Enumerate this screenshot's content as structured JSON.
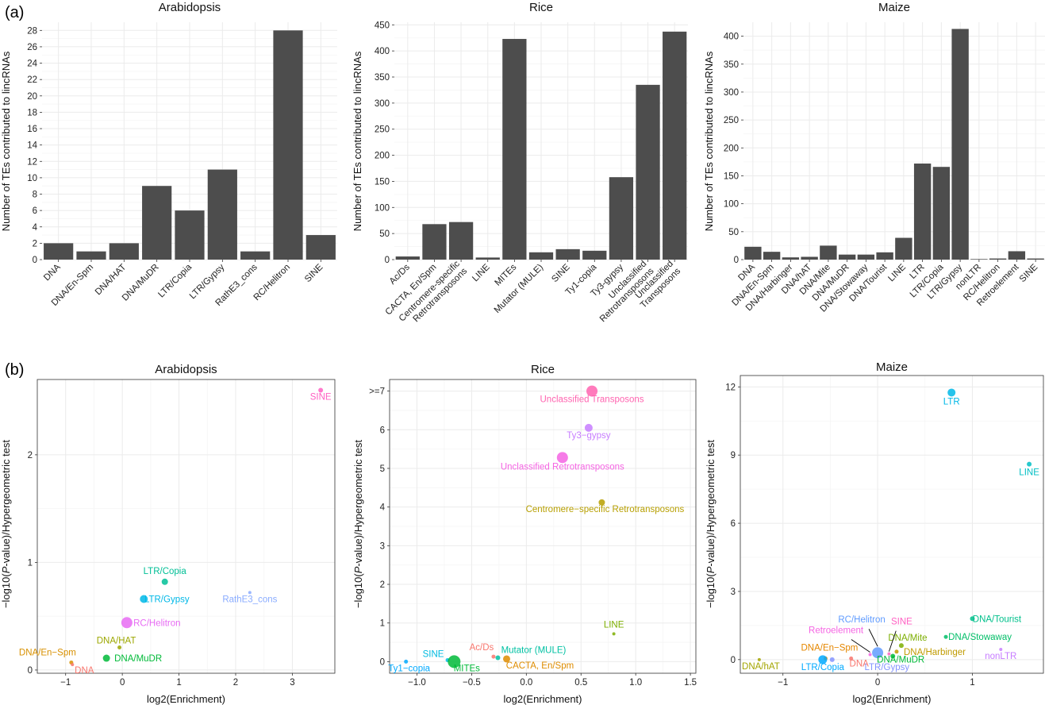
{
  "panels": {
    "a": "(a)",
    "b": "(b)"
  },
  "chart_data": [
    {
      "type": "bar",
      "title": "Arabidopsis",
      "xlabel": "",
      "ylabel": "Number of TEs contributed to lincRNAs",
      "ylim": [
        0,
        29
      ],
      "yticks": [
        0,
        2,
        4,
        6,
        8,
        10,
        12,
        14,
        16,
        18,
        20,
        22,
        24,
        26,
        28
      ],
      "grid": true,
      "categories": [
        "DNA",
        "DNA/En-Spm",
        "DNA/HAT",
        "DNA/MuDR",
        "LTR/Copia",
        "LTR/Gypsy",
        "RathE3_cons",
        "RC/Helitron",
        "SINE"
      ],
      "values": [
        2,
        1,
        2,
        9,
        6,
        11,
        1,
        28,
        3
      ]
    },
    {
      "type": "bar",
      "title": "Rice",
      "xlabel": "",
      "ylabel": "Number of TEs contributed to lincRNAs",
      "ylim": [
        0,
        455
      ],
      "yticks": [
        0,
        50,
        100,
        150,
        200,
        250,
        300,
        350,
        400,
        450
      ],
      "grid": true,
      "categories": [
        "Ac/Ds",
        "CACTA, En/Spm",
        "Centromere-specific\nRetrotransposons",
        "LINE",
        "MITEs",
        "Mutator (MULE)",
        "SINE",
        "Ty1-copia",
        "Ty3-gypsy",
        "Unclassified\nRetrotransposons",
        "Unclassified\nTransposons"
      ],
      "values": [
        6,
        68,
        72,
        4,
        423,
        14,
        20,
        17,
        158,
        335,
        437
      ]
    },
    {
      "type": "bar",
      "title": "Maize",
      "xlabel": "",
      "ylabel": "Number of TEs contributed to lincRNAs",
      "ylim": [
        0,
        425
      ],
      "yticks": [
        0,
        50,
        100,
        150,
        200,
        250,
        300,
        350,
        400
      ],
      "grid": true,
      "categories": [
        "DNA",
        "DNA/En-Spm",
        "DNA/Harbinger",
        "DNA/hAT",
        "DNA/Mite",
        "DNA/MuDR",
        "DNA/Stowaway",
        "DNA/Tourist",
        "LINE",
        "LTR",
        "LTR/Copia",
        "LTR/Gypsy",
        "nonLTR",
        "RC/Helitron",
        "Retroelement",
        "SINE"
      ],
      "values": [
        23,
        14,
        4,
        5,
        25,
        9,
        9,
        13,
        39,
        172,
        166,
        413,
        1,
        2,
        15,
        2
      ]
    },
    {
      "type": "scatter",
      "title": "Arabidopsis",
      "xlabel": "log2(Enrichment)",
      "ylabel": "-log10(P-value)/Hypergeometric test",
      "xlim": [
        -1.5,
        3.75
      ],
      "ylim": [
        -0.03,
        2.7
      ],
      "xticks": [
        -1,
        0,
        1,
        2,
        3
      ],
      "yticks": [
        0,
        1,
        2
      ],
      "grid": true,
      "points": [
        {
          "label": "SINE",
          "x": 3.5,
          "y": 2.6,
          "size": 3,
          "color": "#FF61C3",
          "dx": 0,
          "dy": 12
        },
        {
          "label": "LTR/Copia",
          "x": 0.75,
          "y": 0.82,
          "size": 4,
          "color": "#00BF96",
          "dx": 0,
          "dy": -10
        },
        {
          "label": "LTR/Gypsy",
          "x": 0.38,
          "y": 0.66,
          "size": 5,
          "color": "#00B8E7",
          "dx": 29,
          "dy": 4
        },
        {
          "label": "RathE3_cons",
          "x": 2.25,
          "y": 0.72,
          "size": 2,
          "color": "#8AACFF",
          "dx": 0,
          "dy": 12
        },
        {
          "label": "RC/Helitron",
          "x": 0.08,
          "y": 0.44,
          "size": 7,
          "color": "#E76BF3",
          "dx": 38,
          "dy": 4
        },
        {
          "label": "DNA/HAT",
          "x": -0.05,
          "y": 0.21,
          "size": 2.5,
          "color": "#9CA700",
          "dx": -4,
          "dy": -5
        },
        {
          "label": "DNA/MuDR",
          "x": -0.28,
          "y": 0.11,
          "size": 4.5,
          "color": "#00BA38",
          "dx": 40,
          "dy": 4
        },
        {
          "label": "DNA/En-Spm",
          "x": -0.9,
          "y": 0.07,
          "size": 2.5,
          "color": "#D89000",
          "dx": -30,
          "dy": -9
        },
        {
          "label": "DNA",
          "x": -0.88,
          "y": 0.05,
          "size": 2,
          "color": "#F8766D",
          "dx": 15,
          "dy": 11
        }
      ]
    },
    {
      "type": "scatter",
      "title": "Rice",
      "xlabel": "log2(Enrichment)",
      "ylabel": "-log10(P-value)/Hypergeometric test",
      "xlim": [
        -1.25,
        1.55
      ],
      "ylim": [
        -0.3,
        7.3
      ],
      "xticks": [
        -1.0,
        -0.5,
        0.0,
        0.5,
        1.0,
        1.5
      ],
      "xtick_labels": [
        "-1.0",
        "-0.5",
        "0.0",
        "0.5",
        "1.0",
        "1.5"
      ],
      "yticks": [
        0,
        1,
        2,
        3,
        4,
        5,
        6,
        7
      ],
      "ytick_labels": [
        "0",
        "1",
        "2",
        "3",
        "4",
        "5",
        "6",
        ">=7"
      ],
      "grid": true,
      "points": [
        {
          "label": "Unclassified Transposons",
          "x": 0.6,
          "y": 7.0,
          "size": 7,
          "color": "#FF64B0",
          "dx": 0,
          "dy": 14
        },
        {
          "label": "Ty3-gypsy",
          "x": 0.57,
          "y": 6.05,
          "size": 5,
          "color": "#C77CFF",
          "dx": 0,
          "dy": 13
        },
        {
          "label": "Unclassified Retrotransposons",
          "x": 0.33,
          "y": 5.28,
          "size": 7,
          "color": "#F564E3",
          "dx": 0,
          "dy": 15
        },
        {
          "label": "Centromere-specific Retrotransposons",
          "x": 0.69,
          "y": 4.12,
          "size": 4,
          "color": "#B79F00",
          "dx": 4,
          "dy": 12
        },
        {
          "label": "LINE",
          "x": 0.8,
          "y": 0.72,
          "size": 2,
          "color": "#7CAE00",
          "dx": 0,
          "dy": -8
        },
        {
          "label": "Ac/Ds",
          "x": -0.3,
          "y": 0.13,
          "size": 2.5,
          "color": "#F8766D",
          "dx": -15,
          "dy": -8
        },
        {
          "label": "Mutator (MULE)",
          "x": -0.26,
          "y": 0.1,
          "size": 3,
          "color": "#00C1A3",
          "dx": 45,
          "dy": -6
        },
        {
          "label": "CACTA, En/Spm",
          "x": -0.18,
          "y": 0.07,
          "size": 4.5,
          "color": "#DE8C00",
          "dx": 42,
          "dy": 12
        },
        {
          "label": "SINE",
          "x": -0.72,
          "y": 0.04,
          "size": 2.5,
          "color": "#00BAE0",
          "dx": -18,
          "dy": -4
        },
        {
          "label": "MITEs",
          "x": -0.66,
          "y": 0.0,
          "size": 8,
          "color": "#00BA38",
          "dx": 16,
          "dy": 12
        },
        {
          "label": "Ty1-copia",
          "x": -1.1,
          "y": 0.0,
          "size": 2.5,
          "color": "#00A9FF",
          "dx": 4,
          "dy": 12
        }
      ]
    },
    {
      "type": "scatter",
      "title": "Maize",
      "xlabel": "log2(Enrichment)",
      "ylabel": "-log10(P-value)/Hypergeometric test",
      "xlim": [
        -1.45,
        1.75
      ],
      "ylim": [
        -0.6,
        12.5
      ],
      "xticks": [
        -1,
        0,
        1
      ],
      "yticks": [
        0,
        3,
        6,
        9,
        12
      ],
      "grid": true,
      "points": [
        {
          "label": "LTR",
          "x": 0.78,
          "y": 11.75,
          "size": 5,
          "color": "#00B8E7",
          "dx": 0,
          "dy": 15
        },
        {
          "label": "LINE",
          "x": 1.6,
          "y": 8.6,
          "size": 3,
          "color": "#00BFC4",
          "dx": 0,
          "dy": 14
        },
        {
          "label": "DNA/Tourist",
          "x": 1.0,
          "y": 1.8,
          "size": 3,
          "color": "#00C08B",
          "dx": 31,
          "dy": 4
        },
        {
          "label": "DNA/Stowaway",
          "x": 0.72,
          "y": 1.0,
          "size": 2.5,
          "color": "#00BE67",
          "dx": 43,
          "dy": 4
        },
        {
          "label": "nonLTR",
          "x": 1.3,
          "y": 0.45,
          "size": 2,
          "color": "#C77CFF",
          "dx": 0,
          "dy": 12
        },
        {
          "label": "DNA/Mite",
          "x": 0.25,
          "y": 0.62,
          "size": 3,
          "color": "#7CAE00",
          "dx": 8,
          "dy": -6
        },
        {
          "label": "DNA/Harbinger",
          "x": 0.2,
          "y": 0.35,
          "size": 2.5,
          "color": "#C09B00",
          "dx": 48,
          "dy": 4
        },
        {
          "label": "DNA/MuDR",
          "x": 0.16,
          "y": 0.15,
          "size": 3,
          "color": "#00BA38",
          "dx": 10,
          "dy": 8
        },
        {
          "label": "SINE",
          "x": 0.12,
          "y": 0.25,
          "size": 2,
          "color": "#FF61C3",
          "dx": 16,
          "dy": -37
        },
        {
          "label": "RC/Helitron",
          "x": 0.0,
          "y": 0.3,
          "size": 7,
          "color": "#619CFF",
          "dx": -20,
          "dy": -38
        },
        {
          "label": "Retroelement",
          "x": -0.08,
          "y": 0.22,
          "size": 2,
          "color": "#F564E3",
          "dx": -43,
          "dy": -27
        },
        {
          "label": "DNA/En-Spm",
          "x": -0.55,
          "y": 0.05,
          "size": 2.5,
          "color": "#E58700",
          "dx": 5,
          "dy": -10
        },
        {
          "label": "DNA",
          "x": -0.28,
          "y": 0.05,
          "size": 2.5,
          "color": "#F8766D",
          "dx": 10,
          "dy": 10
        },
        {
          "label": "LTR/Copia",
          "x": -0.58,
          "y": 0.0,
          "size": 5.5,
          "color": "#00A9FF",
          "dx": 0,
          "dy": 13
        },
        {
          "label": "LTR/Gypsy",
          "x": -0.48,
          "y": 0.0,
          "size": 3,
          "color": "#8494FF",
          "dx": 69,
          "dy": 13
        },
        {
          "label": "DNA/hAT",
          "x": -1.25,
          "y": 0.0,
          "size": 2,
          "color": "#A3A500",
          "dx": 2,
          "dy": 12
        }
      ]
    }
  ]
}
